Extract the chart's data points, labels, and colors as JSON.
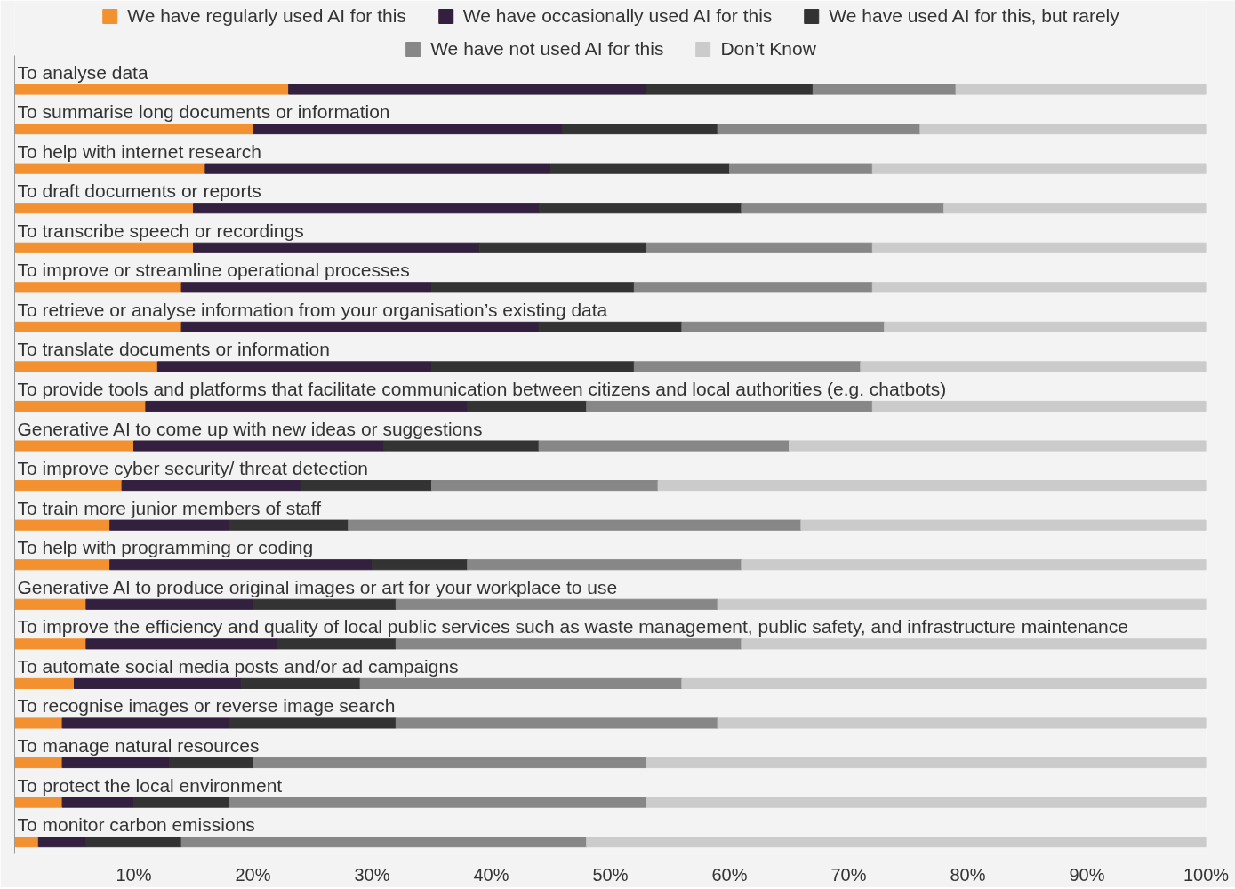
{
  "chart_data": {
    "type": "bar",
    "orientation": "horizontal",
    "stacked": true,
    "categories": [
      "To analyse data",
      "To summarise long documents or information",
      "To help with internet research",
      "To draft documents or reports",
      "To transcribe speech or recordings",
      "To improve or streamline operational processes",
      "To retrieve or analyse information from your organisation’s existing data",
      "To translate documents or information",
      "To provide tools and platforms that facilitate communication between citizens and local authorities (e.g. chatbots)",
      "Generative AI to come up with new ideas or suggestions",
      "To improve cyber security/ threat detection",
      "To train more junior members of staff",
      "To help with programming or coding",
      "Generative AI to produce original images or art for your workplace to use",
      "To improve the efficiency and quality of local public services such as waste management, public safety, and infrastructure maintenance",
      "To automate social media posts and/or ad campaigns",
      "To recognise images or reverse image search",
      "To manage natural resources",
      "To protect the local environment",
      "To monitor carbon emissions"
    ],
    "series": [
      {
        "name": "We have regularly used AI for this",
        "color": "#f39130",
        "values": [
          23,
          20,
          16,
          15,
          15,
          14,
          14,
          12,
          11,
          10,
          9,
          8,
          8,
          6,
          6,
          5,
          4,
          4,
          4,
          2
        ]
      },
      {
        "name": "We have occasionally used AI for this",
        "color": "#33203f",
        "values": [
          30,
          26,
          29,
          29,
          24,
          21,
          30,
          23,
          27,
          21,
          15,
          10,
          22,
          14,
          16,
          14,
          14,
          9,
          6,
          4
        ]
      },
      {
        "name": "We have used AI for this, but rarely",
        "color": "#333333",
        "values": [
          14,
          13,
          15,
          17,
          14,
          17,
          12,
          17,
          10,
          13,
          11,
          10,
          8,
          12,
          10,
          10,
          14,
          7,
          8,
          8
        ]
      },
      {
        "name": "We have not used AI for this",
        "color": "#878787",
        "values": [
          12,
          17,
          12,
          17,
          19,
          20,
          17,
          19,
          24,
          21,
          19,
          38,
          23,
          27,
          29,
          27,
          27,
          33,
          35,
          34
        ]
      },
      {
        "name": "Don’t Know",
        "color": "#cbcbcb",
        "values": [
          21,
          24,
          28,
          22,
          28,
          28,
          27,
          29,
          28,
          35,
          46,
          34,
          39,
          41,
          39,
          44,
          41,
          47,
          47,
          52
        ]
      }
    ],
    "xlim": [
      0,
      100
    ],
    "xticks": [
      {
        "value": 10,
        "label": "10%"
      },
      {
        "value": 20,
        "label": "20%"
      },
      {
        "value": 30,
        "label": "30%"
      },
      {
        "value": 40,
        "label": "40%"
      },
      {
        "value": 50,
        "label": "50%"
      },
      {
        "value": 60,
        "label": "60%"
      },
      {
        "value": 70,
        "label": "70%"
      },
      {
        "value": 80,
        "label": "80%"
      },
      {
        "value": 90,
        "label": "90%"
      },
      {
        "value": 100,
        "label": "100%"
      }
    ],
    "legend": "top"
  }
}
